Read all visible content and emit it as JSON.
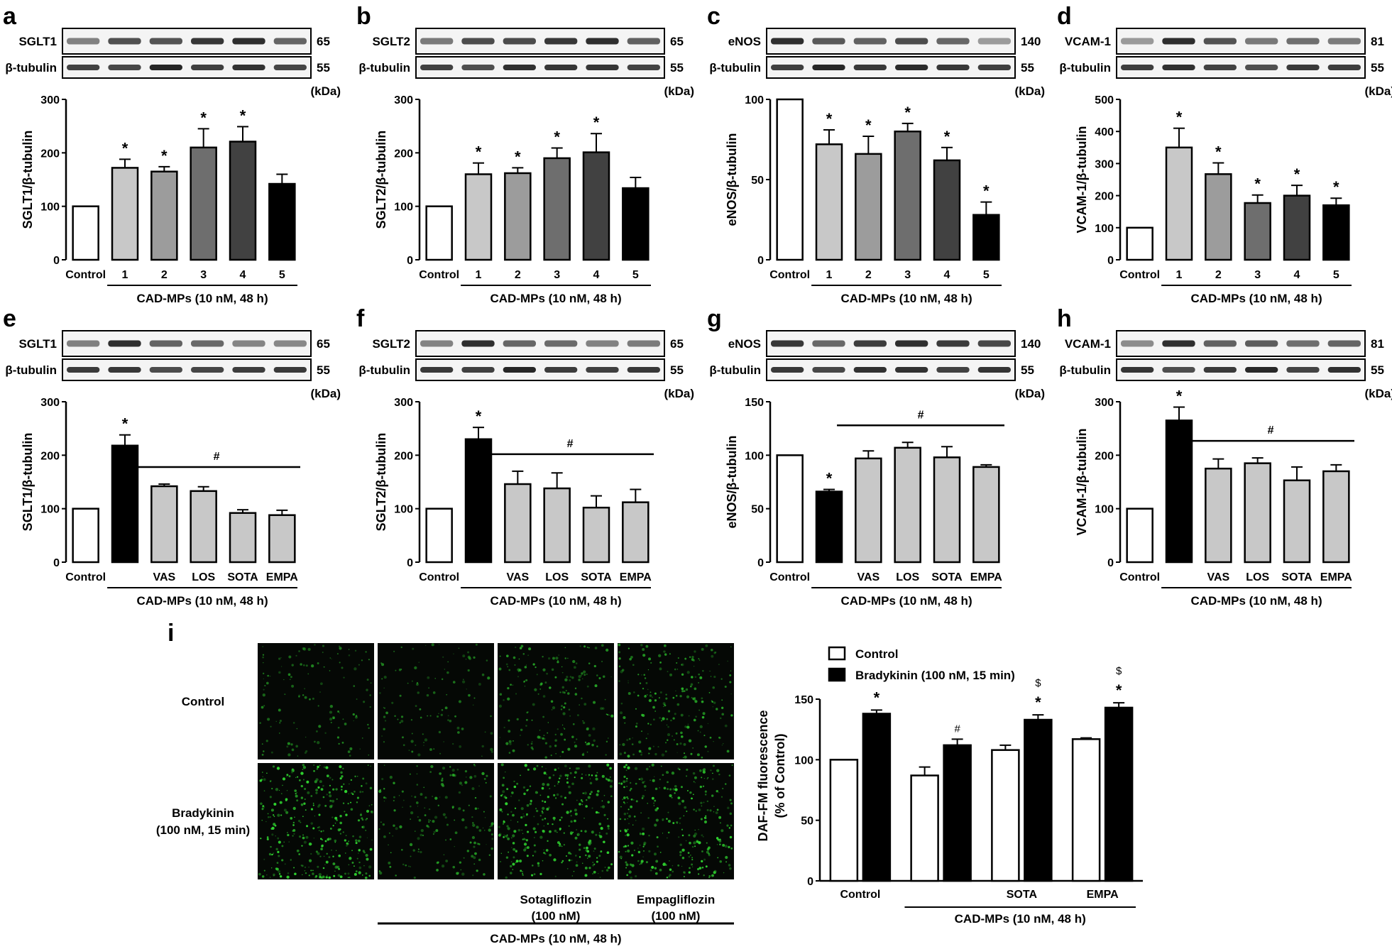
{
  "figure": {
    "panel_letters": [
      "a",
      "b",
      "c",
      "d",
      "e",
      "f",
      "g",
      "h",
      "i"
    ],
    "kda_label": "(kDa)"
  },
  "colors": {
    "control": "#ffffff",
    "mp1": "#c8c8c8",
    "mp2": "#9c9c9c",
    "mp3": "#6e6e6e",
    "mp4": "#414141",
    "mp5": "#000000",
    "treated": "#c8c8c8",
    "black": "#000000",
    "fluorescence": "#2fd02f"
  },
  "chart_data": [
    {
      "id": "a",
      "type": "bar",
      "blot": {
        "top_label": "SGLT1",
        "top_kda": "65",
        "bottom_label": "β-tubulin",
        "bottom_kda": "55"
      },
      "ylabel": "SGLT1/β-tubulin",
      "ylim": [
        0,
        300
      ],
      "yticks": [
        "0",
        "100",
        "200",
        "300"
      ],
      "categories": [
        "Control",
        "1",
        "2",
        "3",
        "4",
        "5"
      ],
      "values": [
        100,
        172,
        165,
        210,
        221,
        142
      ],
      "errors": [
        0,
        16,
        9,
        35,
        28,
        18
      ],
      "fills": [
        "control",
        "mp1",
        "mp2",
        "mp3",
        "mp4",
        "mp5"
      ],
      "marks": [
        {
          "index": 1,
          "text": "*"
        },
        {
          "index": 2,
          "text": "*"
        },
        {
          "index": 3,
          "text": "*"
        },
        {
          "index": 4,
          "text": "*"
        }
      ],
      "group_label": "CAD-MPs (10 nM, 48 h)"
    },
    {
      "id": "b",
      "type": "bar",
      "blot": {
        "top_label": "SGLT2",
        "top_kda": "65",
        "bottom_label": "β-tubulin",
        "bottom_kda": "55"
      },
      "ylabel": "SGLT2/β-tubulin",
      "ylim": [
        0,
        300
      ],
      "yticks": [
        "0",
        "100",
        "200",
        "300"
      ],
      "categories": [
        "Control",
        "1",
        "2",
        "3",
        "4",
        "5"
      ],
      "values": [
        100,
        160,
        162,
        190,
        201,
        134
      ],
      "errors": [
        0,
        21,
        10,
        19,
        35,
        20
      ],
      "fills": [
        "control",
        "mp1",
        "mp2",
        "mp3",
        "mp4",
        "mp5"
      ],
      "marks": [
        {
          "index": 1,
          "text": "*"
        },
        {
          "index": 2,
          "text": "*"
        },
        {
          "index": 3,
          "text": "*"
        },
        {
          "index": 4,
          "text": "*"
        }
      ],
      "group_label": "CAD-MPs (10 nM, 48 h)"
    },
    {
      "id": "c",
      "type": "bar",
      "blot": {
        "top_label": "eNOS",
        "top_kda": "140",
        "bottom_label": "β-tubulin",
        "bottom_kda": "55"
      },
      "ylabel": "eNOS/β-tubulin",
      "ylim": [
        0,
        100
      ],
      "yticks": [
        "0",
        "50",
        "100"
      ],
      "categories": [
        "Control",
        "1",
        "2",
        "3",
        "4",
        "5"
      ],
      "values": [
        100,
        72,
        66,
        80,
        62,
        28
      ],
      "errors": [
        0,
        9,
        11,
        5,
        8,
        8
      ],
      "fills": [
        "control",
        "mp1",
        "mp2",
        "mp3",
        "mp4",
        "mp5"
      ],
      "marks": [
        {
          "index": 1,
          "text": "*"
        },
        {
          "index": 2,
          "text": "*"
        },
        {
          "index": 3,
          "text": "*"
        },
        {
          "index": 4,
          "text": "*"
        },
        {
          "index": 5,
          "text": "*"
        }
      ],
      "group_label": "CAD-MPs (10 nM, 48 h)"
    },
    {
      "id": "d",
      "type": "bar",
      "blot": {
        "top_label": "VCAM-1",
        "top_kda": "81",
        "bottom_label": "β-tubulin",
        "bottom_kda": "55"
      },
      "ylabel": "VCAM-1/β-tubulin",
      "ylim": [
        0,
        500
      ],
      "yticks": [
        "0",
        "100",
        "200",
        "300",
        "400",
        "500"
      ],
      "categories": [
        "Control",
        "1",
        "2",
        "3",
        "4",
        "5"
      ],
      "values": [
        100,
        350,
        267,
        177,
        200,
        170
      ],
      "errors": [
        0,
        60,
        35,
        25,
        32,
        22
      ],
      "fills": [
        "control",
        "mp1",
        "mp2",
        "mp3",
        "mp4",
        "mp5"
      ],
      "marks": [
        {
          "index": 1,
          "text": "*"
        },
        {
          "index": 2,
          "text": "*"
        },
        {
          "index": 3,
          "text": "*"
        },
        {
          "index": 4,
          "text": "*"
        },
        {
          "index": 5,
          "text": "*"
        }
      ],
      "group_label": "CAD-MPs (10 nM, 48 h)"
    },
    {
      "id": "e",
      "type": "bar",
      "blot": {
        "top_label": "SGLT1",
        "top_kda": "65",
        "bottom_label": "β-tubulin",
        "bottom_kda": "55"
      },
      "ylabel": "SGLT1/β-tubulin",
      "ylim": [
        0,
        300
      ],
      "yticks": [
        "0",
        "100",
        "200",
        "300"
      ],
      "categories": [
        "Control",
        "",
        "VAS",
        "LOS",
        "SOTA",
        "EMPA"
      ],
      "values": [
        100,
        218,
        142,
        133,
        92,
        88
      ],
      "errors": [
        0,
        20,
        4,
        8,
        6,
        9
      ],
      "fills": [
        "control",
        "black",
        "treated",
        "treated",
        "treated",
        "treated"
      ],
      "marks": [
        {
          "index": 1,
          "text": "*"
        }
      ],
      "hash_text": "#",
      "group_label": "CAD-MPs (10 nM, 48 h)"
    },
    {
      "id": "f",
      "type": "bar",
      "blot": {
        "top_label": "SGLT2",
        "top_kda": "65",
        "bottom_label": "β-tubulin",
        "bottom_kda": "55"
      },
      "ylabel": "SGLT2/β-tubulin",
      "ylim": [
        0,
        300
      ],
      "yticks": [
        "0",
        "100",
        "200",
        "300"
      ],
      "categories": [
        "Control",
        "",
        "VAS",
        "LOS",
        "SOTA",
        "EMPA"
      ],
      "values": [
        100,
        230,
        146,
        138,
        102,
        112
      ],
      "errors": [
        0,
        22,
        24,
        29,
        22,
        24
      ],
      "fills": [
        "control",
        "black",
        "treated",
        "treated",
        "treated",
        "treated"
      ],
      "marks": [
        {
          "index": 1,
          "text": "*"
        }
      ],
      "hash_text": "#",
      "group_label": "CAD-MPs (10 nM, 48 h)"
    },
    {
      "id": "g",
      "type": "bar",
      "blot": {
        "top_label": "eNOS",
        "top_kda": "140",
        "bottom_label": "β-tubulin",
        "bottom_kda": "55"
      },
      "ylabel": "eNOS/β-tubulin",
      "ylim": [
        0,
        150
      ],
      "yticks": [
        "0",
        "50",
        "100",
        "150"
      ],
      "categories": [
        "Control",
        "",
        "VAS",
        "LOS",
        "SOTA",
        "EMPA"
      ],
      "values": [
        100,
        66,
        97,
        107,
        98,
        89
      ],
      "errors": [
        0,
        2,
        7,
        5,
        10,
        2
      ],
      "fills": [
        "control",
        "black",
        "treated",
        "treated",
        "treated",
        "treated"
      ],
      "marks": [
        {
          "index": 1,
          "text": "*"
        }
      ],
      "hash_text": "#",
      "group_label": "CAD-MPs (10 nM, 48 h)"
    },
    {
      "id": "h",
      "type": "bar",
      "blot": {
        "top_label": "VCAM-1",
        "top_kda": "81",
        "bottom_label": "β-tubulin",
        "bottom_kda": "55"
      },
      "ylabel": "VCAM-1/β-tubulin",
      "ylim": [
        0,
        300
      ],
      "yticks": [
        "0",
        "100",
        "200",
        "300"
      ],
      "categories": [
        "Control",
        "",
        "VAS",
        "LOS",
        "SOTA",
        "EMPA"
      ],
      "values": [
        100,
        265,
        175,
        185,
        153,
        170
      ],
      "errors": [
        0,
        25,
        18,
        10,
        25,
        12
      ],
      "fills": [
        "control",
        "black",
        "treated",
        "treated",
        "treated",
        "treated"
      ],
      "marks": [
        {
          "index": 1,
          "text": "*"
        }
      ],
      "hash_text": "#",
      "group_label": "CAD-MPs (10 nM, 48 h)"
    },
    {
      "id": "i",
      "type": "bar",
      "ylabel": "DAF-FM fluorescence\n(% of Control)",
      "ylabel_lines": [
        "DAF-FM fluorescence",
        "(% of Control)"
      ],
      "ylim": [
        0,
        150
      ],
      "yticks": [
        "0",
        "50",
        "100",
        "150"
      ],
      "categories": [
        "Control",
        "",
        "SOTA",
        "EMPA"
      ],
      "series": [
        {
          "name": "Control",
          "values": [
            100,
            87,
            108,
            117
          ],
          "errors": [
            0,
            7,
            4,
            1
          ]
        },
        {
          "name": "Bradykinin (100 nM, 15 min)",
          "values": [
            138,
            112,
            133,
            143
          ],
          "errors": [
            3,
            5,
            4,
            4
          ]
        }
      ],
      "marks": [
        {
          "group": 0,
          "series": 1,
          "text": "*"
        },
        {
          "group": 1,
          "series": 1,
          "text": "#"
        },
        {
          "group": 2,
          "series": 1,
          "text": "*"
        },
        {
          "group": 2,
          "series": 1,
          "text": "$",
          "upper": true
        },
        {
          "group": 3,
          "series": 1,
          "text": "*"
        },
        {
          "group": 3,
          "series": 1,
          "text": "$",
          "upper": true
        }
      ],
      "group_label": "CAD-MPs (10 nM, 48 h)",
      "micrographs": {
        "row_labels": [
          [
            "Control"
          ],
          [
            "Bradykinin",
            "(100 nM, 15 min)"
          ]
        ],
        "col_labels": [
          [],
          [],
          [
            "Sotagliflozin",
            "(100 nM)"
          ],
          [
            "Empagliflozin",
            "(100 nM)"
          ]
        ],
        "group_label": "CAD-MPs (10 nM, 48 h)",
        "relative_density": [
          [
            0.25,
            0.18,
            0.45,
            0.55
          ],
          [
            0.95,
            0.4,
            0.9,
            0.85
          ]
        ]
      }
    }
  ]
}
